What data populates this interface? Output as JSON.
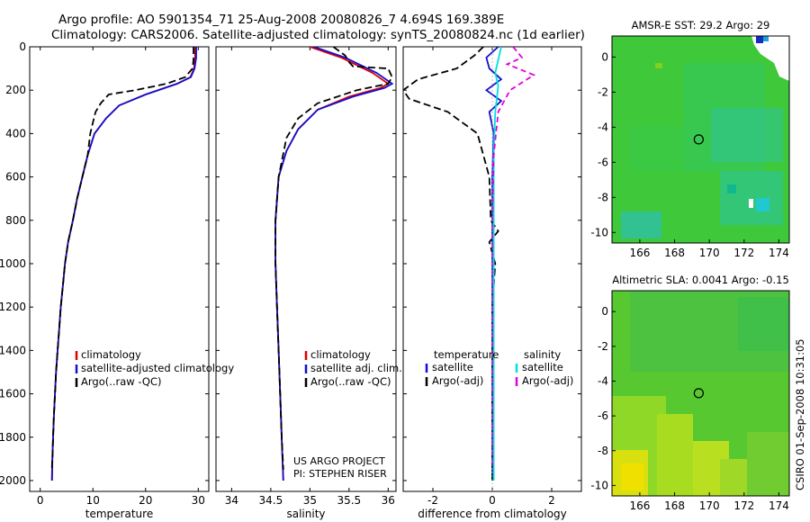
{
  "title_line1": "Argo profile: AO 5901354_71 25-Aug-2008 20080826_7 4.694S 169.389E",
  "title_line2": "Climatology: CARS2006. Satellite-adjusted climatology: synTS_20080824.nc (1d earlier)",
  "project_line1": "US ARGO PROJECT",
  "project_line2": "PI: STEPHEN RISER",
  "timestamp": "CSIRO 01-Sep-2008 10:31:05",
  "depth_ticks": [
    "0",
    "200",
    "400",
    "600",
    "800",
    "1000",
    "1200",
    "1400",
    "1600",
    "1800",
    "2000"
  ],
  "colors": {
    "climatology": "#e00000",
    "satellite": "#1010d0",
    "argo": "#000000",
    "sat_diff": "#00e0e0",
    "argo_diff": "#e000e0"
  },
  "chart_data": [
    {
      "type": "line",
      "xlabel": "temperature",
      "ylabel": "",
      "xlim": [
        -2,
        32
      ],
      "ylim": [
        2050,
        0
      ],
      "xticks": [
        0,
        10,
        20,
        30
      ],
      "legend": [
        "climatology",
        "satellite-adjusted climatology",
        "Argo(..raw -QC)"
      ],
      "series": [
        {
          "name": "climatology",
          "points": [
            [
              29.4,
              0
            ],
            [
              29.4,
              50
            ],
            [
              29.2,
              100
            ],
            [
              28.5,
              140
            ],
            [
              26,
              170
            ],
            [
              20,
              220
            ],
            [
              15,
              270
            ],
            [
              12.5,
              330
            ],
            [
              10.3,
              400
            ],
            [
              9,
              500
            ],
            [
              8,
              600
            ],
            [
              7,
              700
            ],
            [
              6.2,
              800
            ],
            [
              5.3,
              900
            ],
            [
              4.7,
              1000
            ],
            [
              4.3,
              1100
            ],
            [
              3.9,
              1200
            ],
            [
              3.6,
              1300
            ],
            [
              3.3,
              1400
            ],
            [
              3.0,
              1500
            ],
            [
              2.8,
              1600
            ],
            [
              2.6,
              1700
            ],
            [
              2.45,
              1800
            ],
            [
              2.3,
              1900
            ],
            [
              2.25,
              2000
            ]
          ]
        },
        {
          "name": "satellite-adjusted climatology",
          "points": [
            [
              29.6,
              0
            ],
            [
              29.6,
              50
            ],
            [
              29.3,
              100
            ],
            [
              28.6,
              140
            ],
            [
              26,
              170
            ],
            [
              20,
              220
            ],
            [
              15,
              270
            ],
            [
              12.5,
              330
            ],
            [
              10.3,
              400
            ],
            [
              9,
              500
            ],
            [
              8,
              600
            ],
            [
              7,
              700
            ],
            [
              6.2,
              800
            ],
            [
              5.3,
              900
            ],
            [
              4.7,
              1000
            ],
            [
              4.3,
              1100
            ],
            [
              3.9,
              1200
            ],
            [
              3.6,
              1300
            ],
            [
              3.3,
              1400
            ],
            [
              3.0,
              1500
            ],
            [
              2.8,
              1600
            ],
            [
              2.6,
              1700
            ],
            [
              2.45,
              1800
            ],
            [
              2.3,
              1900
            ],
            [
              2.2,
              2000
            ]
          ]
        },
        {
          "name": "Argo(..raw -QC)",
          "points": [
            [
              29.1,
              0
            ],
            [
              29.1,
              60
            ],
            [
              28.9,
              100
            ],
            [
              27.5,
              140
            ],
            [
              24,
              170
            ],
            [
              18,
              200
            ],
            [
              13,
              220
            ],
            [
              11.5,
              260
            ],
            [
              10.5,
              300
            ],
            [
              10,
              350
            ],
            [
              9.5,
              400
            ],
            [
              9,
              500
            ],
            [
              8,
              600
            ],
            [
              7,
              700
            ],
            [
              6.2,
              800
            ],
            [
              5.3,
              900
            ],
            [
              4.7,
              1000
            ],
            [
              4.3,
              1100
            ],
            [
              3.9,
              1200
            ],
            [
              3.6,
              1300
            ],
            [
              3.3,
              1400
            ],
            [
              3.0,
              1500
            ],
            [
              2.8,
              1600
            ],
            [
              2.6,
              1700
            ],
            [
              2.45,
              1800
            ],
            [
              2.3,
              1900
            ],
            [
              2.2,
              1950
            ]
          ]
        }
      ]
    },
    {
      "type": "line",
      "xlabel": "salinity",
      "ylabel": "",
      "xlim": [
        33.8,
        36.1
      ],
      "ylim": [
        2050,
        0
      ],
      "xticks": [
        34,
        34.5,
        35,
        35.5,
        36
      ],
      "legend": [
        "climatology",
        "satellite adj. clim.",
        "Argo(..raw -QC)"
      ],
      "series": [
        {
          "name": "climatology",
          "points": [
            [
              35.0,
              0
            ],
            [
              35.4,
              50
            ],
            [
              35.8,
              120
            ],
            [
              36.0,
              170
            ],
            [
              35.9,
              190
            ],
            [
              35.5,
              230
            ],
            [
              35.1,
              290
            ],
            [
              34.85,
              380
            ],
            [
              34.7,
              480
            ],
            [
              34.6,
              600
            ],
            [
              34.56,
              800
            ],
            [
              34.56,
              1000
            ],
            [
              34.58,
              1200
            ],
            [
              34.6,
              1400
            ],
            [
              34.62,
              1600
            ],
            [
              34.64,
              1800
            ],
            [
              34.66,
              2000
            ]
          ]
        },
        {
          "name": "satellite adj. clim.",
          "points": [
            [
              35.05,
              0
            ],
            [
              35.45,
              50
            ],
            [
              35.85,
              120
            ],
            [
              36.05,
              170
            ],
            [
              35.95,
              190
            ],
            [
              35.55,
              230
            ],
            [
              35.1,
              290
            ],
            [
              34.85,
              380
            ],
            [
              34.7,
              480
            ],
            [
              34.6,
              600
            ],
            [
              34.56,
              800
            ],
            [
              34.56,
              1000
            ],
            [
              34.58,
              1200
            ],
            [
              34.6,
              1400
            ],
            [
              34.62,
              1600
            ],
            [
              34.64,
              1800
            ],
            [
              34.66,
              2000
            ]
          ]
        },
        {
          "name": "Argo(..raw -QC)",
          "points": [
            [
              35.3,
              0
            ],
            [
              35.45,
              40
            ],
            [
              35.5,
              70
            ],
            [
              35.55,
              90
            ],
            [
              36.0,
              100
            ],
            [
              36.05,
              140
            ],
            [
              36.0,
              170
            ],
            [
              35.6,
              200
            ],
            [
              35.1,
              260
            ],
            [
              34.85,
              330
            ],
            [
              34.7,
              420
            ],
            [
              34.6,
              600
            ],
            [
              34.56,
              800
            ],
            [
              34.56,
              1000
            ],
            [
              34.58,
              1200
            ],
            [
              34.6,
              1400
            ],
            [
              34.62,
              1600
            ],
            [
              34.64,
              1800
            ],
            [
              34.66,
              1950
            ]
          ]
        }
      ]
    },
    {
      "type": "line",
      "xlabel": "difference from climatology",
      "ylabel": "",
      "xlim": [
        -3,
        3
      ],
      "ylim": [
        2050,
        0
      ],
      "xticks": [
        -2,
        0,
        2
      ],
      "legend": [
        "temperature",
        "satellite",
        "Argo(-adj)",
        "salinity",
        "satellite",
        "Argo(-adj)"
      ],
      "series": [
        {
          "name": "temperature satellite",
          "points": [
            [
              0.2,
              0
            ],
            [
              -0.2,
              50
            ],
            [
              -0.1,
              100
            ],
            [
              0.3,
              150
            ],
            [
              -0.2,
              200
            ],
            [
              0.3,
              250
            ],
            [
              -0.1,
              300
            ],
            [
              0.05,
              400
            ],
            [
              0,
              600
            ],
            [
              0,
              800
            ],
            [
              0,
              1000
            ],
            [
              0,
              1400
            ],
            [
              0,
              2000
            ]
          ]
        },
        {
          "name": "temperature Argo(-adj)",
          "points": [
            [
              -0.3,
              0
            ],
            [
              -0.6,
              40
            ],
            [
              -1.2,
              100
            ],
            [
              -2.5,
              150
            ],
            [
              -3,
              200
            ],
            [
              -2.8,
              240
            ],
            [
              -1.5,
              300
            ],
            [
              -0.5,
              400
            ],
            [
              -0.1,
              600
            ],
            [
              -0.05,
              800
            ],
            [
              0.2,
              850
            ],
            [
              -0.1,
              900
            ],
            [
              0.1,
              1000
            ],
            [
              0,
              1200
            ],
            [
              0,
              1400
            ],
            [
              0,
              1800
            ],
            [
              0,
              2000
            ]
          ]
        },
        {
          "name": "salinity satellite",
          "points": [
            [
              0.3,
              0
            ],
            [
              0.2,
              60
            ],
            [
              0.1,
              120
            ],
            [
              0.2,
              180
            ],
            [
              0.1,
              300
            ],
            [
              0.05,
              500
            ],
            [
              0.05,
              800
            ],
            [
              0.05,
              1200
            ],
            [
              0.05,
              1600
            ],
            [
              0.05,
              2000
            ]
          ]
        },
        {
          "name": "salinity Argo(-adj)",
          "points": [
            [
              0.7,
              0
            ],
            [
              1.0,
              50
            ],
            [
              0.5,
              80
            ],
            [
              1.4,
              130
            ],
            [
              0.6,
              200
            ],
            [
              0.2,
              300
            ],
            [
              0.05,
              500
            ],
            [
              0,
              800
            ],
            [
              0,
              1200
            ],
            [
              0,
              1600
            ],
            [
              0,
              1950
            ]
          ]
        }
      ]
    },
    {
      "type": "heatmap",
      "title": "AMSR-E SST: 29.2 Argo: 29",
      "xticks": [
        166,
        168,
        170,
        172,
        174
      ],
      "yticks": [
        0,
        -2,
        -4,
        -6,
        -8,
        -10
      ],
      "xlim": [
        164.4,
        174.6
      ],
      "ylim": [
        -10.6,
        1.2
      ],
      "marker": [
        169.389,
        -4.694
      ]
    },
    {
      "type": "heatmap",
      "title": "Altimetric SLA: 0.0041 Argo: -0.15",
      "xticks": [
        166,
        168,
        170,
        172,
        174
      ],
      "yticks": [
        0,
        -2,
        -4,
        -6,
        -8,
        -10
      ],
      "xlim": [
        164.4,
        174.6
      ],
      "ylim": [
        -10.6,
        1.2
      ],
      "marker": [
        169.389,
        -4.694
      ]
    }
  ]
}
